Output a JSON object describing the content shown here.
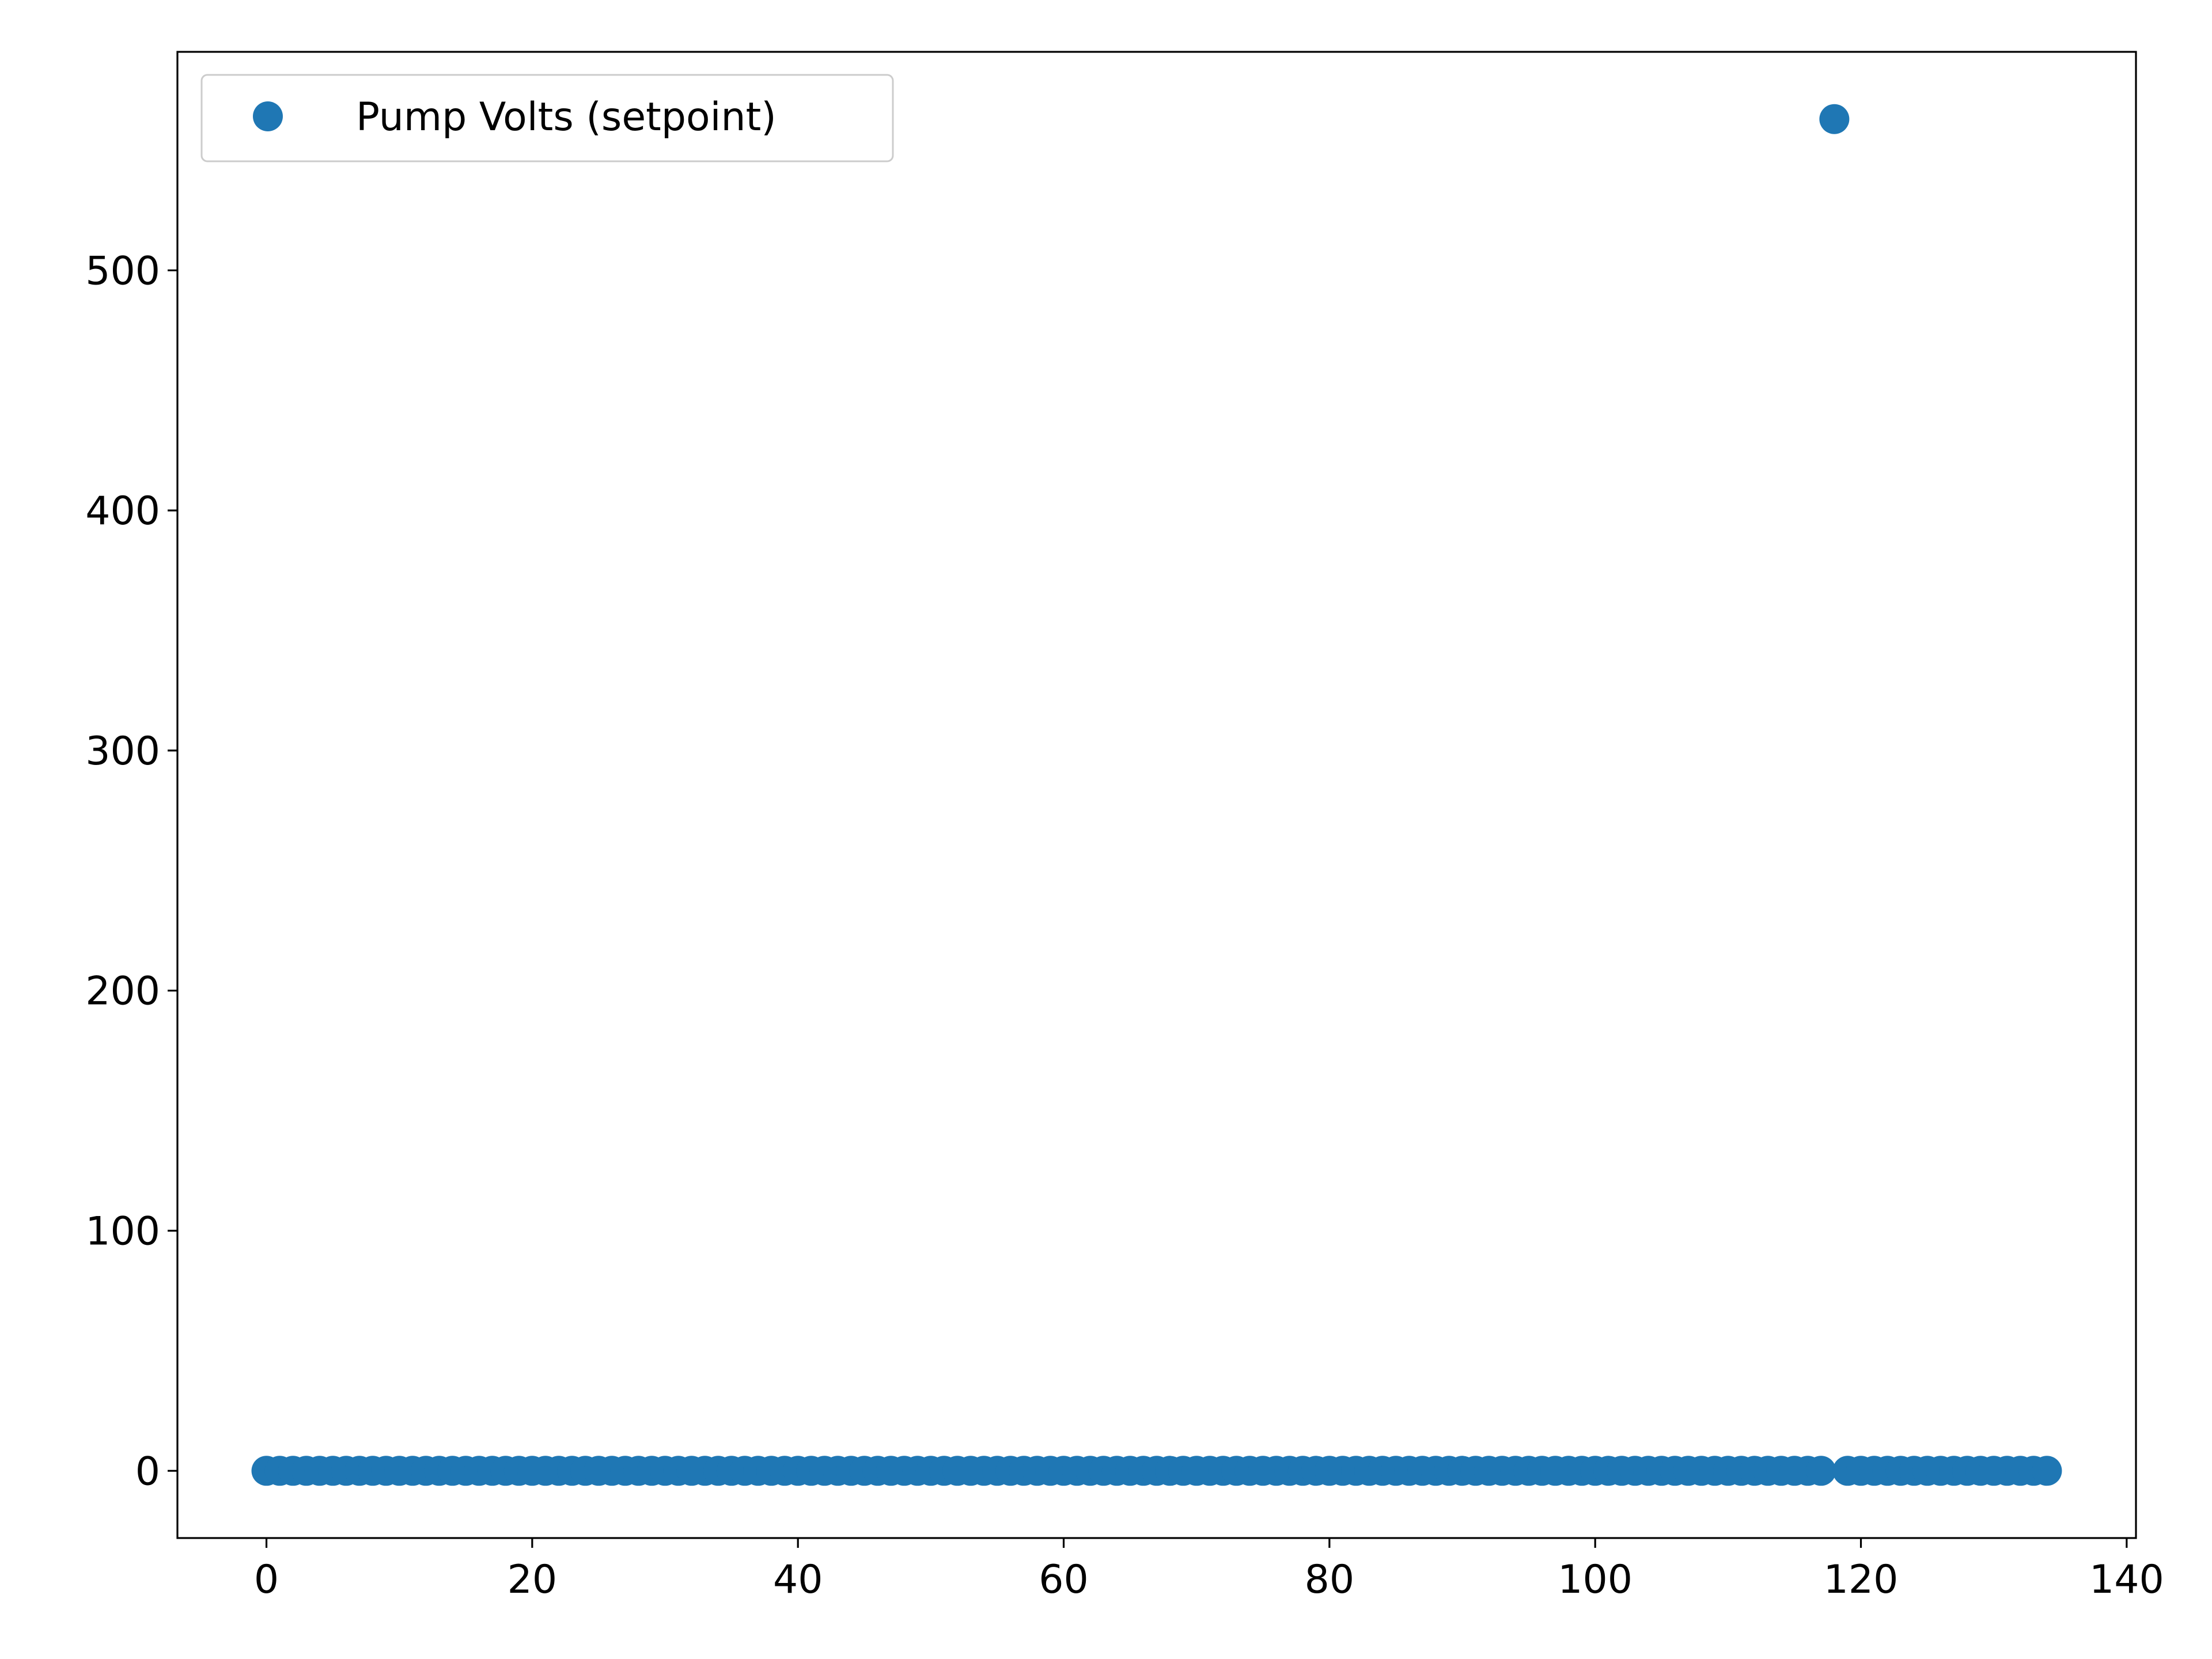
{
  "chart_data": {
    "type": "scatter",
    "title": "",
    "xlabel": "",
    "ylabel": "",
    "xlim": [
      -6.7,
      140.7
    ],
    "ylim": [
      -28,
      591
    ],
    "x_ticks": [
      0,
      20,
      40,
      60,
      80,
      100,
      120,
      140
    ],
    "x_tick_labels": [
      "0",
      "20",
      "40",
      "60",
      "80",
      "100",
      "120",
      "140"
    ],
    "y_ticks": [
      0,
      100,
      200,
      300,
      400,
      500
    ],
    "y_tick_labels": [
      "0",
      "100",
      "200",
      "300",
      "400",
      "500"
    ],
    "grid": false,
    "legend_position": "upper-left",
    "series": [
      {
        "name": "Pump Volts (setpoint)",
        "color": "#1f77b4",
        "x": [
          0,
          1,
          2,
          3,
          4,
          5,
          6,
          7,
          8,
          9,
          10,
          11,
          12,
          13,
          14,
          15,
          16,
          17,
          18,
          19,
          20,
          21,
          22,
          23,
          24,
          25,
          26,
          27,
          28,
          29,
          30,
          31,
          32,
          33,
          34,
          35,
          36,
          37,
          38,
          39,
          40,
          41,
          42,
          43,
          44,
          45,
          46,
          47,
          48,
          49,
          50,
          51,
          52,
          53,
          54,
          55,
          56,
          57,
          58,
          59,
          60,
          61,
          62,
          63,
          64,
          65,
          66,
          67,
          68,
          69,
          70,
          71,
          72,
          73,
          74,
          75,
          76,
          77,
          78,
          79,
          80,
          81,
          82,
          83,
          84,
          85,
          86,
          87,
          88,
          89,
          90,
          91,
          92,
          93,
          94,
          95,
          96,
          97,
          98,
          99,
          100,
          101,
          102,
          103,
          104,
          105,
          106,
          107,
          108,
          109,
          110,
          111,
          112,
          113,
          114,
          115,
          116,
          117,
          118,
          119,
          120,
          121,
          122,
          123,
          124,
          125,
          126,
          127,
          128,
          129,
          130,
          131,
          132,
          133,
          134
        ],
        "y": [
          0,
          0,
          0,
          0,
          0,
          0,
          0,
          0,
          0,
          0,
          0,
          0,
          0,
          0,
          0,
          0,
          0,
          0,
          0,
          0,
          0,
          0,
          0,
          0,
          0,
          0,
          0,
          0,
          0,
          0,
          0,
          0,
          0,
          0,
          0,
          0,
          0,
          0,
          0,
          0,
          0,
          0,
          0,
          0,
          0,
          0,
          0,
          0,
          0,
          0,
          0,
          0,
          0,
          0,
          0,
          0,
          0,
          0,
          0,
          0,
          0,
          0,
          0,
          0,
          0,
          0,
          0,
          0,
          0,
          0,
          0,
          0,
          0,
          0,
          0,
          0,
          0,
          0,
          0,
          0,
          0,
          0,
          0,
          0,
          0,
          0,
          0,
          0,
          0,
          0,
          0,
          0,
          0,
          0,
          0,
          0,
          0,
          0,
          0,
          0,
          0,
          0,
          0,
          0,
          0,
          0,
          0,
          0,
          0,
          0,
          0,
          0,
          0,
          0,
          0,
          0,
          0,
          0,
          563,
          0,
          0,
          0,
          0,
          0,
          0,
          0,
          0,
          0,
          0,
          0,
          0,
          0,
          0,
          0,
          0
        ]
      }
    ]
  }
}
